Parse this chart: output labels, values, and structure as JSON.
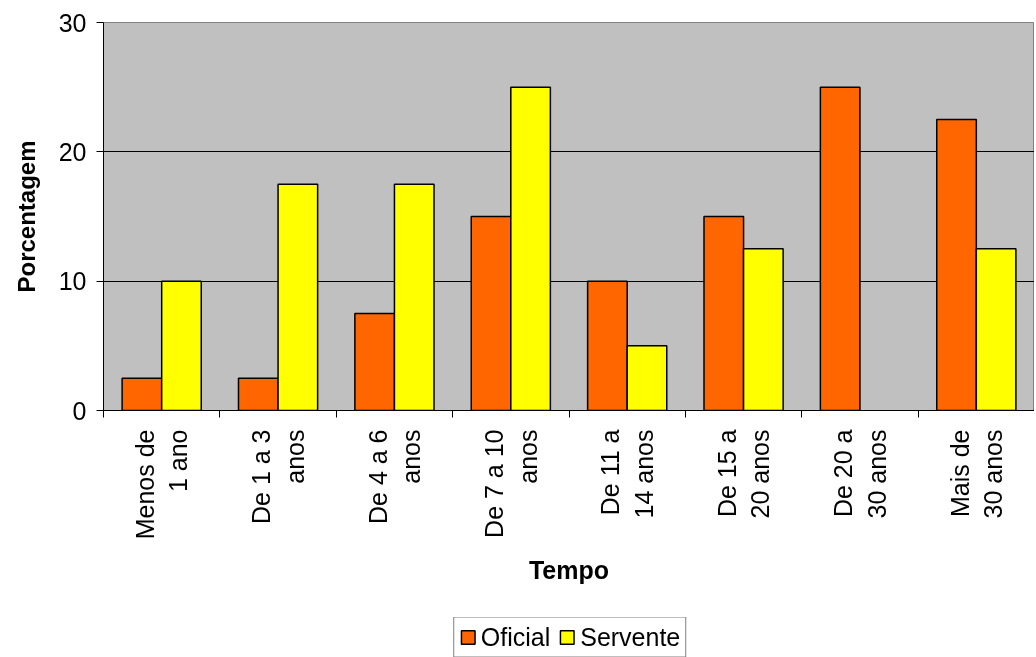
{
  "chart_data": {
    "type": "bar",
    "xlabel": "Tempo",
    "ylabel": "Porcentagem",
    "categories": [
      "Menos de 1 ano",
      "De 1 a 3 anos",
      "De 4 a 6 anos",
      "De 7 a 10 anos",
      "De 11 a 14 anos",
      "De 15 a 20 anos",
      "De 20 a 30 anos",
      "Mais de 30 anos"
    ],
    "series": [
      {
        "name": "Oficial",
        "color": "#ff6600",
        "values": [
          2.5,
          2.5,
          7.5,
          15,
          10,
          15,
          25,
          22.5
        ]
      },
      {
        "name": "Servente",
        "color": "#ffff00",
        "values": [
          10,
          17.5,
          17.5,
          25,
          5,
          12.5,
          null,
          12.5
        ]
      }
    ],
    "ylim": [
      0,
      30
    ],
    "yticks": [
      0,
      10,
      20,
      30
    ],
    "grid": "y",
    "legend": "bottom"
  }
}
